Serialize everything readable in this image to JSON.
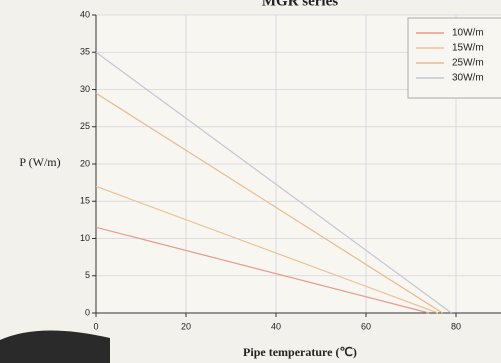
{
  "chart_data": {
    "type": "line",
    "title": "MGR series",
    "x_label": "Pipe temperature (℃)",
    "y_label": "P (W/m)",
    "xlim": [
      0,
      90
    ],
    "ylim": [
      0,
      40
    ],
    "xticks": [
      0,
      20,
      40,
      60,
      80
    ],
    "yticks": [
      0,
      5,
      10,
      15,
      20,
      25,
      30,
      35,
      40
    ],
    "grid": true,
    "legend": "upper right",
    "series": [
      {
        "name": "10W/m",
        "color": "#e79a8e",
        "x": [
          0,
          74
        ],
        "values": [
          11.5,
          0
        ]
      },
      {
        "name": "15W/m",
        "color": "#e9c39b",
        "x": [
          0,
          76
        ],
        "values": [
          17,
          0
        ]
      },
      {
        "name": "25W/m",
        "color": "#eeb98a",
        "x": [
          0,
          77
        ],
        "values": [
          29.5,
          0
        ]
      },
      {
        "name": "30W/m",
        "color": "#c2c7d6",
        "x": [
          0,
          79
        ],
        "values": [
          35,
          0
        ]
      }
    ]
  }
}
